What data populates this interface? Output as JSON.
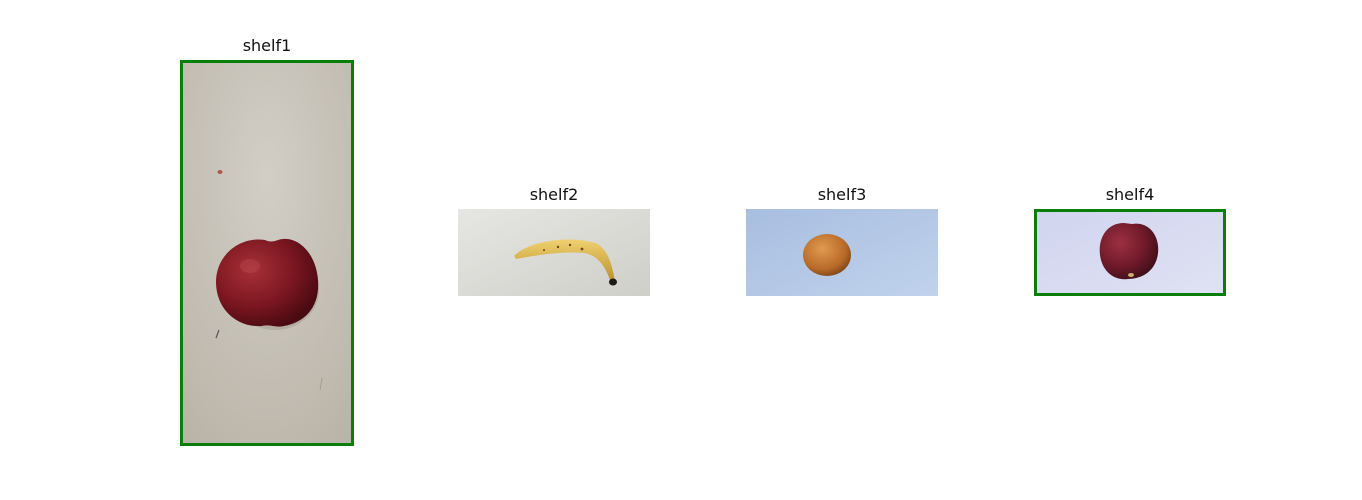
{
  "panels": [
    {
      "title": "shelf1",
      "highlighted": true,
      "highlight_color": "#0a7d0a",
      "content": "red-apple-photo"
    },
    {
      "title": "shelf2",
      "highlighted": false,
      "content": "banana-photo"
    },
    {
      "title": "shelf3",
      "highlighted": false,
      "content": "orange-photo"
    },
    {
      "title": "shelf4",
      "highlighted": true,
      "highlight_color": "#0a7d0a",
      "content": "red-apple-photo"
    }
  ]
}
